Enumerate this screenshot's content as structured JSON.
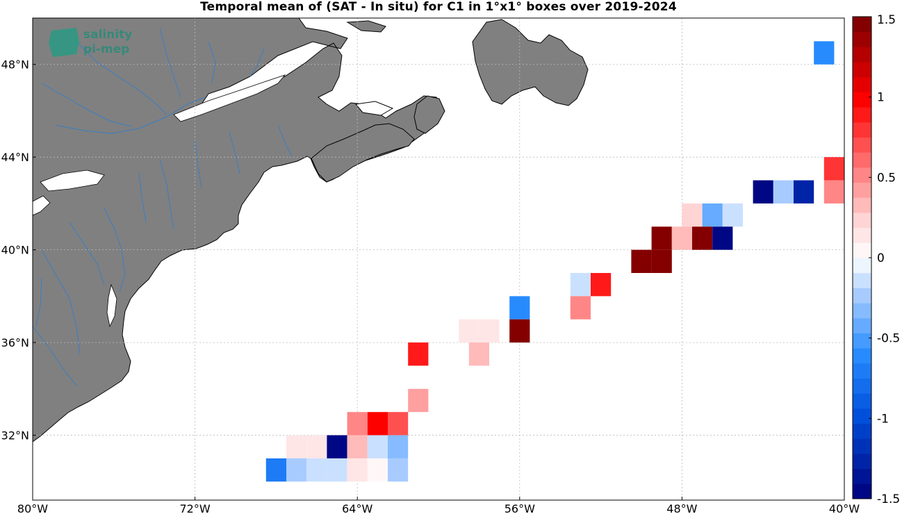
{
  "title": "Temporal mean of (SAT - In situ) for C1 in 1°x1° boxes over 2019-2024",
  "logo": {
    "line1": "salinity",
    "line2": "pi-mep"
  },
  "map": {
    "lon_range": [
      -80,
      -40
    ],
    "lat_range": [
      29.2,
      50.0
    ],
    "x_ticks": [
      {
        "value": -80,
        "label": "80°W"
      },
      {
        "value": -72,
        "label": "72°W"
      },
      {
        "value": -64,
        "label": "64°W"
      },
      {
        "value": -56,
        "label": "56°W"
      },
      {
        "value": -48,
        "label": "48°W"
      },
      {
        "value": -40,
        "label": "40°W"
      }
    ],
    "y_ticks": [
      {
        "value": 32,
        "label": "32°N"
      },
      {
        "value": 36,
        "label": "36°N"
      },
      {
        "value": 40,
        "label": "40°N"
      },
      {
        "value": 44,
        "label": "44°N"
      },
      {
        "value": 48,
        "label": "48°N"
      }
    ],
    "land_color": "#808080",
    "river_color": "#3a7ec4",
    "grid": true
  },
  "colorbar": {
    "range": [
      -1.5,
      1.5
    ],
    "levels": 32,
    "ticks": [
      {
        "value": 1.5,
        "label": "1.5"
      },
      {
        "value": 1,
        "label": "1"
      },
      {
        "value": 0.5,
        "label": "0.5"
      },
      {
        "value": 0,
        "label": "0"
      },
      {
        "value": -0.5,
        "label": "-0.5"
      },
      {
        "value": -1,
        "label": "-1"
      },
      {
        "value": -1.5,
        "label": "-1.5"
      }
    ]
  },
  "chart_data": {
    "type": "heatmap",
    "title": "Temporal mean of (SAT - In situ) for C1 in 1°x1° boxes over 2019-2024",
    "cell_size_deg": 1,
    "cells": [
      {
        "lon": -41.0,
        "lat": 48.5,
        "value": -0.6
      },
      {
        "lon": -40.5,
        "lat": 43.5,
        "value": 0.8
      },
      {
        "lon": -44.0,
        "lat": 42.5,
        "value": -1.5
      },
      {
        "lon": -43.0,
        "lat": 42.5,
        "value": -0.25
      },
      {
        "lon": -42.0,
        "lat": 42.5,
        "value": -1.3
      },
      {
        "lon": -40.5,
        "lat": 42.5,
        "value": 0.55
      },
      {
        "lon": -47.5,
        "lat": 41.5,
        "value": 0.25
      },
      {
        "lon": -46.5,
        "lat": 41.5,
        "value": -0.45
      },
      {
        "lon": -45.5,
        "lat": 41.5,
        "value": -0.15
      },
      {
        "lon": -49.0,
        "lat": 40.5,
        "value": 1.5
      },
      {
        "lon": -48.0,
        "lat": 40.5,
        "value": 0.3
      },
      {
        "lon": -47.0,
        "lat": 40.5,
        "value": 1.5
      },
      {
        "lon": -46.0,
        "lat": 40.5,
        "value": -1.5
      },
      {
        "lon": -50.0,
        "lat": 39.5,
        "value": 1.5
      },
      {
        "lon": -49.0,
        "lat": 39.5,
        "value": 1.5
      },
      {
        "lon": -53.0,
        "lat": 38.5,
        "value": -0.15
      },
      {
        "lon": -52.0,
        "lat": 38.5,
        "value": 0.85
      },
      {
        "lon": -56.0,
        "lat": 37.5,
        "value": -0.6
      },
      {
        "lon": -53.0,
        "lat": 37.5,
        "value": 0.5
      },
      {
        "lon": -58.5,
        "lat": 36.5,
        "value": 0.15
      },
      {
        "lon": -57.5,
        "lat": 36.5,
        "value": 0.15
      },
      {
        "lon": -56.0,
        "lat": 36.5,
        "value": 1.5
      },
      {
        "lon": -61.0,
        "lat": 35.5,
        "value": 0.85
      },
      {
        "lon": -58.0,
        "lat": 35.5,
        "value": 0.3
      },
      {
        "lon": -61.0,
        "lat": 33.5,
        "value": 0.4
      },
      {
        "lon": -64.0,
        "lat": 32.5,
        "value": 0.55
      },
      {
        "lon": -63.0,
        "lat": 32.5,
        "value": 0.95
      },
      {
        "lon": -62.0,
        "lat": 32.5,
        "value": 0.7
      },
      {
        "lon": -67.0,
        "lat": 31.5,
        "value": 0.15
      },
      {
        "lon": -66.0,
        "lat": 31.5,
        "value": 0.15
      },
      {
        "lon": -65.0,
        "lat": 31.5,
        "value": -1.5
      },
      {
        "lon": -64.0,
        "lat": 31.5,
        "value": 0.3
      },
      {
        "lon": -63.0,
        "lat": 31.5,
        "value": -0.15
      },
      {
        "lon": -62.0,
        "lat": 31.5,
        "value": -0.35
      },
      {
        "lon": -68.0,
        "lat": 30.5,
        "value": -0.75
      },
      {
        "lon": -67.0,
        "lat": 30.5,
        "value": -0.25
      },
      {
        "lon": -66.0,
        "lat": 30.5,
        "value": -0.15
      },
      {
        "lon": -65.0,
        "lat": 30.5,
        "value": -0.15
      },
      {
        "lon": -64.0,
        "lat": 30.5,
        "value": 0.15
      },
      {
        "lon": -63.0,
        "lat": 30.5,
        "value": 0.0
      },
      {
        "lon": -62.0,
        "lat": 30.5,
        "value": -0.25
      }
    ]
  }
}
